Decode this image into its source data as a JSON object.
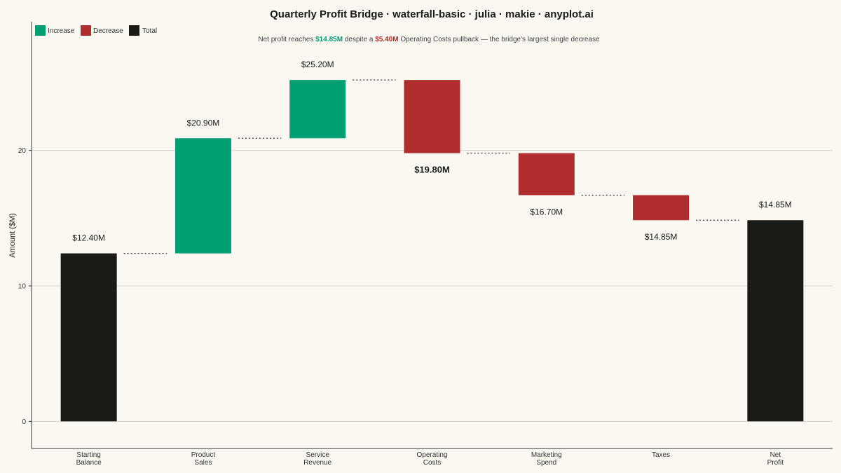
{
  "chart_data": {
    "type": "waterfall",
    "title": "Quarterly Profit Bridge · waterfall-basic · julia · makie · anyplot.ai",
    "subtitle": {
      "prefix": "Net profit reaches ",
      "highlight1": "$14.85M",
      "middle": " despite a ",
      "highlight2": "$5.40M",
      "suffix": " Operating Costs pullback — the bridge's largest single decrease"
    },
    "ylabel": "Amount ($M)",
    "ylim": [
      -2,
      29.5
    ],
    "yticks": [
      0,
      10,
      20
    ],
    "grid": true,
    "legend": {
      "position": "top-left",
      "items": [
        {
          "label": "Increase",
          "color": "#009E73"
        },
        {
          "label": "Decrease",
          "color": "#AF2D2F"
        },
        {
          "label": "Total",
          "color": "#1A1A17"
        }
      ]
    },
    "colors": {
      "increase": "#009E73",
      "decrease": "#AF2D2F",
      "total": "#1A1A17"
    },
    "steps": [
      {
        "category": [
          "Starting",
          "Balance"
        ],
        "kind": "total",
        "start": 0,
        "end": 12.4,
        "label": "$12.40M"
      },
      {
        "category": [
          "Product",
          "Sales"
        ],
        "kind": "increase",
        "start": 12.4,
        "end": 20.9,
        "label": "$20.90M"
      },
      {
        "category": [
          "Service",
          "Revenue"
        ],
        "kind": "increase",
        "start": 20.9,
        "end": 25.2,
        "label": "$25.20M"
      },
      {
        "category": [
          "Operating",
          "Costs"
        ],
        "kind": "decrease",
        "start": 25.2,
        "end": 19.8,
        "label": "$19.80M",
        "emphasis": true
      },
      {
        "category": [
          "Marketing",
          "Spend"
        ],
        "kind": "decrease",
        "start": 19.8,
        "end": 16.7,
        "label": "$16.70M"
      },
      {
        "category": [
          "Taxes"
        ],
        "kind": "decrease",
        "start": 16.7,
        "end": 14.85,
        "label": "$14.85M"
      },
      {
        "category": [
          "Net",
          "Profit"
        ],
        "kind": "total",
        "start": 0,
        "end": 14.85,
        "label": "$14.85M"
      }
    ]
  }
}
